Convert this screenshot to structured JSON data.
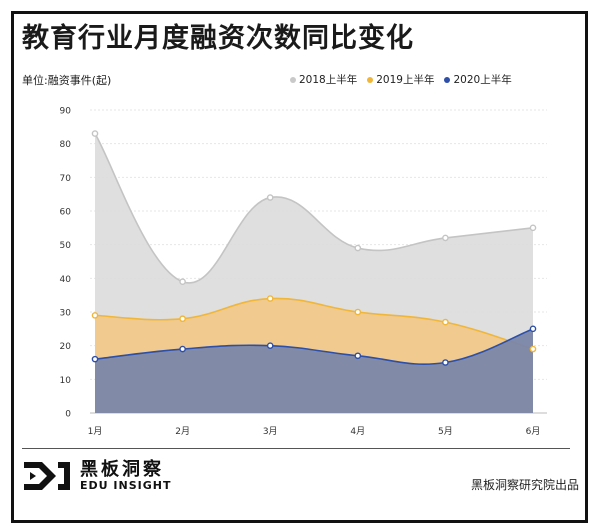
{
  "title": "教育行业月度融资次数同比变化",
  "unit_label": "单位:融资事件(起)",
  "legend": [
    {
      "label": "2018上半年",
      "color": "#c9c9c9"
    },
    {
      "label": "2019上半年",
      "color": "#f0b63a"
    },
    {
      "label": "2020上半年",
      "color": "#2d4fa8"
    }
  ],
  "chart_data": {
    "type": "area",
    "categories": [
      "1月",
      "2月",
      "3月",
      "4月",
      "5月",
      "6月"
    ],
    "ylim": [
      0,
      90
    ],
    "yticks": [
      0,
      10,
      20,
      30,
      40,
      50,
      60,
      70,
      80,
      90
    ],
    "series": [
      {
        "name": "2018上半年",
        "values": [
          83,
          39,
          64,
          49,
          52,
          55
        ],
        "fill": "#dcdcdc",
        "stroke": "#c4c4c4"
      },
      {
        "name": "2019上半年",
        "values": [
          29,
          28,
          34,
          30,
          27,
          19
        ],
        "fill": "#f2c885",
        "stroke": "#f0b63a"
      },
      {
        "name": "2020上半年",
        "values": [
          16,
          19,
          20,
          17,
          15,
          25
        ],
        "fill": "#7a86a8",
        "stroke": "#2d4fa8"
      }
    ],
    "grid": true
  },
  "footer": {
    "logo_cn": "黑板洞察",
    "logo_en": "EDU INSIGHT",
    "credit": "黑板洞察研究院出品"
  }
}
